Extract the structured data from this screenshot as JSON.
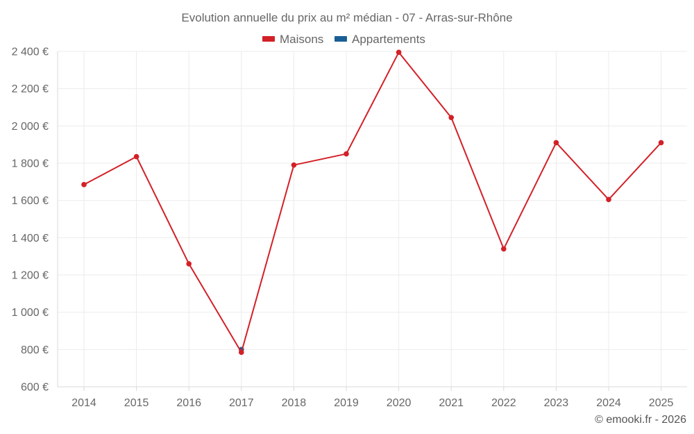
{
  "chart_data": {
    "type": "line",
    "title": "Evolution annuelle du prix au m² médian - 07 - Arras-sur-Rhône",
    "categories": [
      "2014",
      "2015",
      "2016",
      "2017",
      "2018",
      "2019",
      "2020",
      "2021",
      "2022",
      "2023",
      "2024",
      "2025"
    ],
    "series": [
      {
        "name": "Maisons",
        "color": "#d32027",
        "values": [
          1685,
          1835,
          1260,
          785,
          1790,
          1850,
          2395,
          2045,
          1340,
          1910,
          1605,
          1910
        ]
      },
      {
        "name": "Appartements",
        "color": "#1a5f94",
        "values": [
          null,
          null,
          null,
          800,
          null,
          null,
          null,
          null,
          null,
          null,
          null,
          null
        ]
      }
    ],
    "y_ticks": [
      600,
      800,
      1000,
      1200,
      1400,
      1600,
      1800,
      2000,
      2200,
      2400
    ],
    "y_tick_labels": [
      "600 €",
      "800 €",
      "1 000 €",
      "1 200 €",
      "1 400 €",
      "1 600 €",
      "1 800 €",
      "2 000 €",
      "2 200 €",
      "2 400 €"
    ],
    "ylim": [
      600,
      2400
    ],
    "xlabel": "",
    "ylabel": "",
    "grid": true,
    "legend_position": "top-center"
  },
  "credit": "© emooki.fr - 2026"
}
